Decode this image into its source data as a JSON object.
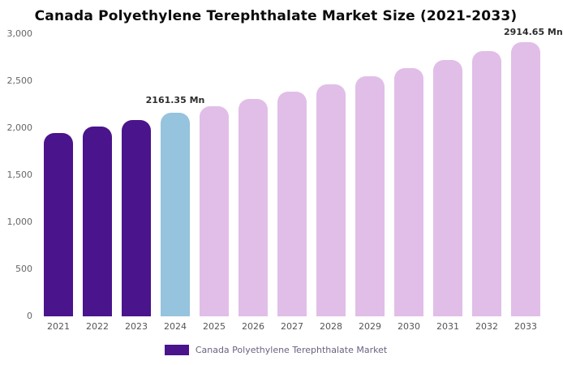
{
  "chart_data": {
    "type": "bar",
    "title": "Canada Polyethylene Terephthalate Market Size (2021-2033)",
    "unit": "Mn",
    "categories": [
      "2021",
      "2022",
      "2023",
      "2024",
      "2025",
      "2026",
      "2027",
      "2028",
      "2029",
      "2030",
      "2031",
      "2032",
      "2033"
    ],
    "values": [
      1950,
      2020,
      2090,
      2161.35,
      2235,
      2310,
      2388,
      2469,
      2552,
      2638,
      2728,
      2820,
      2914.65
    ],
    "ylim": [
      0,
      3000
    ],
    "y_tick_labels": [
      "3,000",
      "2,500",
      "2,000",
      "1,500",
      "1,000",
      "500",
      "0"
    ],
    "grid": false,
    "legend_position": "bottom",
    "legend": {
      "label": "Canada Polyethylene Terephthalate Market",
      "swatch_color": "#4A148C"
    },
    "bar_roles": [
      "historical",
      "historical",
      "historical",
      "highlight",
      "forecast",
      "forecast",
      "forecast",
      "forecast",
      "forecast",
      "forecast",
      "forecast",
      "forecast",
      "forecast"
    ],
    "palette": {
      "historical": "#4A148C",
      "highlight": "#96C3DE",
      "forecast": "#E1BEE7"
    },
    "annotations": [
      {
        "text": "2161.35 Mn",
        "category": "2024"
      },
      {
        "text": "2914.65 Mn",
        "category": "2033"
      }
    ]
  }
}
